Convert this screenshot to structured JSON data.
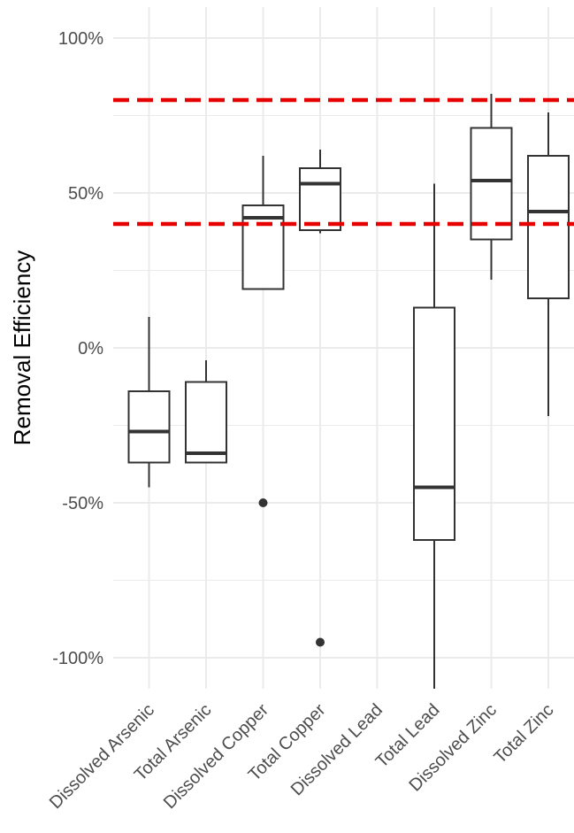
{
  "chart_data": {
    "type": "boxplot",
    "ylabel": "Removal Efficiency",
    "xlabel": "",
    "ylim": [
      -110,
      105
    ],
    "y_ticks": [
      -100,
      -50,
      0,
      50,
      100
    ],
    "y_tick_labels": [
      "-100%",
      "-50%",
      "0%",
      "50%",
      "100%"
    ],
    "grid": true,
    "categories": [
      "Dissolved Arsenic",
      "Total Arsenic",
      "Dissolved Copper",
      "Total Copper",
      "Dissolved Lead",
      "Total Lead",
      "Dissolved Zinc",
      "Total Zinc"
    ],
    "boxes": [
      {
        "category": "Dissolved Arsenic",
        "whisker_low": -45,
        "q1": -37,
        "median": -27,
        "q3": -14,
        "whisker_high": 10,
        "outliers": []
      },
      {
        "category": "Total Arsenic",
        "whisker_low": -37,
        "q1": -37,
        "median": -34,
        "q3": -11,
        "whisker_high": -4,
        "outliers": []
      },
      {
        "category": "Dissolved Copper",
        "whisker_low": 19,
        "q1": 19,
        "median": 42,
        "q3": 46,
        "whisker_high": 62,
        "outliers": [
          -50
        ]
      },
      {
        "category": "Total Copper",
        "whisker_low": 37,
        "q1": 38,
        "median": 53,
        "q3": 58,
        "whisker_high": 64,
        "outliers": [
          -95
        ]
      },
      {
        "category": "Dissolved Lead",
        "whisker_low": null,
        "q1": null,
        "median": null,
        "q3": null,
        "whisker_high": null,
        "outliers": []
      },
      {
        "category": "Total Lead",
        "whisker_low": -110,
        "q1": -62,
        "median": -45,
        "q3": 13,
        "whisker_high": 53,
        "outliers": []
      },
      {
        "category": "Dissolved Zinc",
        "whisker_low": 22,
        "q1": 35,
        "median": 54,
        "q3": 71,
        "whisker_high": 82,
        "outliers": []
      },
      {
        "category": "Total Zinc",
        "whisker_low": -22,
        "q1": 16,
        "median": 44,
        "q3": 62,
        "whisker_high": 76,
        "outliers": []
      }
    ],
    "reference_lines": [
      {
        "y": 80,
        "color": "#e60000",
        "style": "dashed"
      },
      {
        "y": 40,
        "color": "#e60000",
        "style": "dashed"
      }
    ],
    "colors": {
      "box_stroke": "#333333",
      "grid": "#ebebeb",
      "reference": "#e60000",
      "outlier": "#333333"
    }
  }
}
